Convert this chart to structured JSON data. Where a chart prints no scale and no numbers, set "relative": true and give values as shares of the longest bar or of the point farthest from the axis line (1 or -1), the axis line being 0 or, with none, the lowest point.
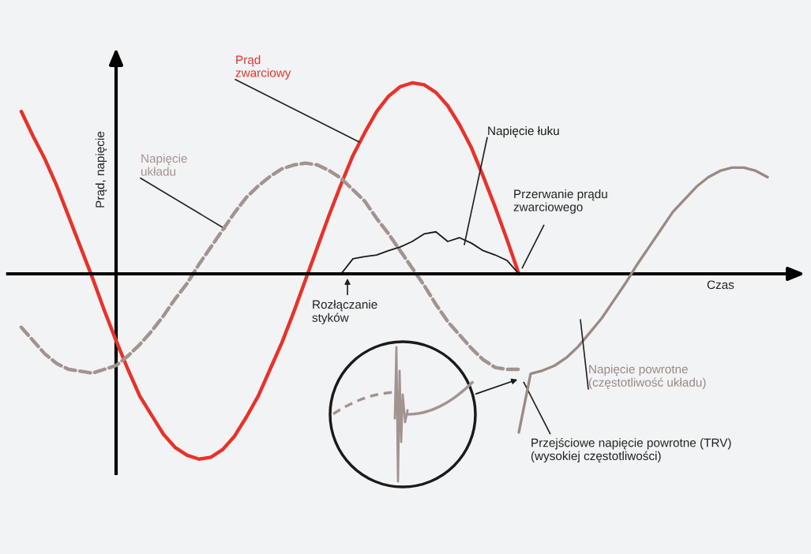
{
  "chart_data": [
    {
      "type": "line",
      "relative": true,
      "ylabel": "Prąd, napięcie",
      "categories": [
        null,
        null,
        null,
        null,
        null,
        null,
        null,
        null,
        null,
        null,
        null,
        null,
        null,
        null,
        null,
        null,
        null,
        null,
        null,
        null,
        null,
        null,
        null,
        null,
        null,
        null,
        null,
        null,
        null,
        null,
        null,
        null,
        null,
        null,
        null,
        null,
        null,
        null,
        null,
        null,
        null,
        null,
        null
      ],
      "series": [
        {
          "name": "Prąd\nzwarciowy",
          "color": "#e8322b",
          "line_style": "solid",
          "values": [
            0.85,
            0.72,
            0.6,
            0.46,
            0.3,
            0.14,
            -0.02,
            -0.19,
            -0.35,
            -0.5,
            -0.64,
            -0.74,
            -0.84,
            -0.91,
            -0.95,
            -0.97,
            -0.96,
            -0.92,
            -0.85,
            -0.75,
            -0.64,
            -0.5,
            -0.36,
            -0.2,
            -0.03,
            0.14,
            0.31,
            0.47,
            0.62,
            0.74,
            0.85,
            0.93,
            0.98,
            1.0,
            0.99,
            0.95,
            0.88,
            0.78,
            0.66,
            0.51,
            0.35,
            0.18,
            0.0
          ]
        },
        {
          "name": "Napięcie\nukładu",
          "color": "#a39390",
          "line_style": "dashed",
          "values": [
            -0.28,
            -0.35,
            -0.42,
            -0.47,
            -0.5,
            -0.51,
            -0.52,
            -0.5,
            -0.48,
            -0.43,
            -0.37,
            -0.3,
            -0.22,
            -0.13,
            -0.05,
            0.05,
            0.14,
            0.23,
            0.32,
            0.4,
            0.46,
            0.51,
            0.55,
            0.57,
            0.58,
            0.57,
            0.54,
            0.5,
            0.44,
            0.38,
            0.29,
            0.21,
            0.12,
            0.03,
            -0.06,
            -0.16,
            -0.25,
            -0.32,
            -0.39,
            -0.45,
            -0.49,
            -0.5,
            -0.5
          ]
        }
      ],
      "annotations": [
        "Przerwanie prądu\nzwarciowego",
        "Rozłączanie\nstyków",
        "Przejściowe napięcie powrotne (TRV)\n(wysokiej częstotliwości)"
      ]
    },
    {
      "type": "line",
      "relative": true,
      "categories": [
        null,
        null,
        null,
        null,
        null,
        null,
        null,
        null,
        null,
        null,
        null,
        null,
        null,
        null,
        null,
        null
      ],
      "series": [
        {
          "name": "Napięcie łuku",
          "color": "#1a1a1a",
          "line_style": "solid",
          "values": [
            0.0,
            0.36,
            0.41,
            0.45,
            0.55,
            0.64,
            0.77,
            0.95,
            1.0,
            0.77,
            0.86,
            0.73,
            0.55,
            0.45,
            0.32,
            0.0
          ]
        }
      ]
    },
    {
      "type": "line",
      "relative": true,
      "xlabel": "Czas",
      "categories": [
        null,
        null,
        null,
        null,
        null,
        null,
        null,
        null,
        null,
        null,
        null,
        null,
        null,
        null,
        null,
        null,
        null,
        null,
        null,
        null,
        null,
        null
      ],
      "series": [
        {
          "name": "Napięcie powrotne\n(częstotliwość układu)",
          "color": "#9a8985",
          "line_style": "solid",
          "values": [
            -1.0,
            -0.63,
            -0.61,
            -0.58,
            -0.53,
            -0.46,
            -0.37,
            -0.28,
            -0.17,
            -0.06,
            0.06,
            0.17,
            0.28,
            0.39,
            0.47,
            0.55,
            0.61,
            0.65,
            0.67,
            0.67,
            0.65,
            0.61
          ]
        }
      ]
    }
  ]
}
